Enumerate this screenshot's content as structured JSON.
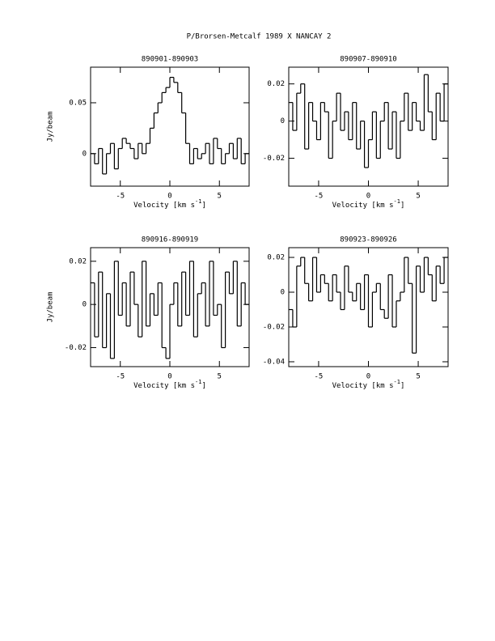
{
  "title": "P/Brorsen-Metcalf 1989 X   NANCAY     2",
  "chart_data": [
    {
      "type": "step",
      "title": "890901-890903",
      "y_label": "Jy/beam",
      "x_label": {
        "text": "Velocity [km s",
        "sup": "-1",
        "tail": "]"
      },
      "x": [
        -7.8,
        -7.4,
        -7.0,
        -6.6,
        -6.2,
        -5.8,
        -5.4,
        -5.0,
        -4.6,
        -4.2,
        -3.8,
        -3.4,
        -3.0,
        -2.6,
        -2.2,
        -1.8,
        -1.4,
        -1.0,
        -0.6,
        -0.2,
        0.2,
        0.6,
        1.0,
        1.4,
        1.8,
        2.2,
        2.6,
        3.0,
        3.4,
        3.8,
        4.2,
        4.6,
        5.0,
        5.4,
        5.8,
        6.2,
        6.6,
        7.0,
        7.4,
        7.8
      ],
      "values": [
        0,
        -0.01,
        0.005,
        -0.02,
        0,
        0.01,
        -0.015,
        0.005,
        0.015,
        0.01,
        0.005,
        -0.005,
        0.01,
        0,
        0.01,
        0.025,
        0.04,
        0.05,
        0.06,
        0.065,
        0.075,
        0.07,
        0.06,
        0.04,
        0.01,
        -0.01,
        0.005,
        -0.005,
        0,
        0.01,
        -0.01,
        0.015,
        0.005,
        -0.01,
        0,
        0.01,
        -0.005,
        0.015,
        -0.01,
        0
      ],
      "color": "#000000",
      "xlim": [
        -8,
        8
      ],
      "ylim": [
        -0.032,
        0.085
      ],
      "xticks": [
        -5,
        0,
        5
      ],
      "yticks": [
        0,
        0.05
      ]
    },
    {
      "type": "step",
      "title": "890907-890910",
      "x_label": {
        "text": "Velocity [km s",
        "sup": "-1",
        "tail": "]"
      },
      "x": [
        -7.8,
        -7.4,
        -7.0,
        -6.6,
        -6.2,
        -5.8,
        -5.4,
        -5.0,
        -4.6,
        -4.2,
        -3.8,
        -3.4,
        -3.0,
        -2.6,
        -2.2,
        -1.8,
        -1.4,
        -1.0,
        -0.6,
        -0.2,
        0.2,
        0.6,
        1.0,
        1.4,
        1.8,
        2.2,
        2.6,
        3.0,
        3.4,
        3.8,
        4.2,
        4.6,
        5.0,
        5.4,
        5.8,
        6.2,
        6.6,
        7.0,
        7.4,
        7.8
      ],
      "values": [
        0.01,
        -0.005,
        0.015,
        0.02,
        -0.015,
        0.01,
        0,
        -0.01,
        0.01,
        0.005,
        -0.02,
        0,
        0.015,
        -0.005,
        0.005,
        -0.01,
        0.01,
        -0.015,
        0,
        -0.025,
        -0.01,
        0.005,
        -0.02,
        0,
        0.01,
        -0.015,
        0.005,
        -0.02,
        0,
        0.015,
        -0.005,
        0.01,
        0,
        -0.005,
        0.025,
        0.005,
        -0.01,
        0.015,
        0,
        0.02
      ],
      "color": "#000000",
      "xlim": [
        -8,
        8
      ],
      "ylim": [
        -0.035,
        0.029
      ],
      "xticks": [
        -5,
        0,
        5
      ],
      "yticks": [
        -0.02,
        0,
        0.02
      ]
    },
    {
      "type": "step",
      "title": "890916-890919",
      "y_label": "Jy/beam",
      "x_label": {
        "text": "Velocity [km s",
        "sup": "-1",
        "tail": "]"
      },
      "x": [
        -7.8,
        -7.4,
        -7.0,
        -6.6,
        -6.2,
        -5.8,
        -5.4,
        -5.0,
        -4.6,
        -4.2,
        -3.8,
        -3.4,
        -3.0,
        -2.6,
        -2.2,
        -1.8,
        -1.4,
        -1.0,
        -0.6,
        -0.2,
        0.2,
        0.6,
        1.0,
        1.4,
        1.8,
        2.2,
        2.6,
        3.0,
        3.4,
        3.8,
        4.2,
        4.6,
        5.0,
        5.4,
        5.8,
        6.2,
        6.6,
        7.0,
        7.4,
        7.8
      ],
      "values": [
        0.01,
        -0.015,
        0.015,
        -0.02,
        0.005,
        -0.025,
        0.02,
        -0.005,
        0.01,
        -0.01,
        0.015,
        0,
        -0.015,
        0.02,
        -0.01,
        0.005,
        -0.005,
        0.01,
        -0.02,
        -0.025,
        0,
        0.01,
        -0.01,
        0.015,
        -0.005,
        0.02,
        -0.015,
        0.005,
        0.01,
        -0.01,
        0.02,
        -0.005,
        0,
        -0.02,
        0.015,
        0.005,
        0.02,
        -0.01,
        0.01,
        0
      ],
      "color": "#000000",
      "xlim": [
        -8,
        8
      ],
      "ylim": [
        -0.0288,
        0.0263
      ],
      "xticks": [
        -5,
        0,
        5
      ],
      "yticks": [
        -0.02,
        0,
        0.02
      ]
    },
    {
      "type": "step",
      "title": "890923-890926",
      "x_label": {
        "text": "Velocity [km s",
        "sup": "-1",
        "tail": "]"
      },
      "x": [
        -7.8,
        -7.4,
        -7.0,
        -6.6,
        -6.2,
        -5.8,
        -5.4,
        -5.0,
        -4.6,
        -4.2,
        -3.8,
        -3.4,
        -3.0,
        -2.6,
        -2.2,
        -1.8,
        -1.4,
        -1.0,
        -0.6,
        -0.2,
        0.2,
        0.6,
        1.0,
        1.4,
        1.8,
        2.2,
        2.6,
        3.0,
        3.4,
        3.8,
        4.2,
        4.6,
        5.0,
        5.4,
        5.8,
        6.2,
        6.6,
        7.0,
        7.4,
        7.8
      ],
      "values": [
        -0.01,
        -0.02,
        0.015,
        0.02,
        0.005,
        -0.005,
        0.02,
        0,
        0.01,
        0.005,
        -0.005,
        0.01,
        0,
        -0.01,
        0.015,
        0,
        -0.005,
        0.005,
        -0.01,
        0.01,
        -0.02,
        0,
        0.005,
        -0.01,
        -0.015,
        0.01,
        -0.02,
        -0.005,
        0,
        0.02,
        0.005,
        -0.035,
        0.015,
        0,
        0.02,
        0.01,
        -0.005,
        0.015,
        0.005,
        0.02
      ],
      "color": "#000000",
      "xlim": [
        -8,
        8
      ],
      "ylim": [
        -0.0428,
        0.0256
      ],
      "xticks": [
        -5,
        0,
        5
      ],
      "yticks": [
        -0.04,
        -0.02,
        0,
        0.02
      ]
    }
  ]
}
